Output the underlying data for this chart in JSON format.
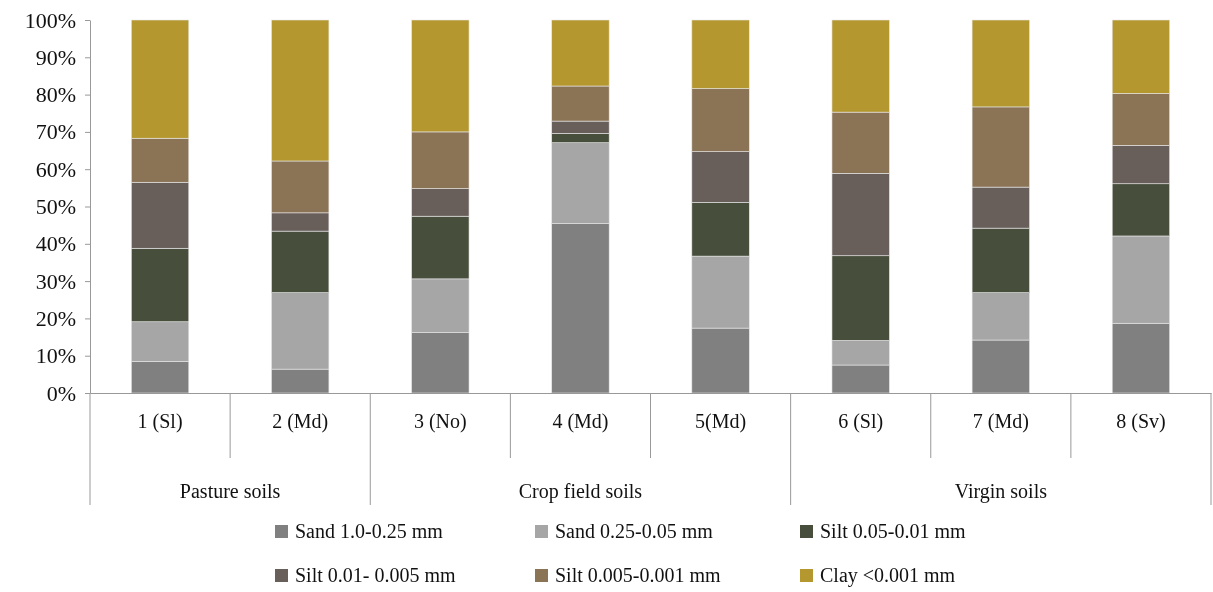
{
  "chart_data": {
    "type": "bar",
    "stacked": true,
    "categories": [
      "1 (Sl)",
      "2 (Md)",
      "3 (No)",
      "4 (Md)",
      "5(Md)",
      "6 (Sl)",
      "7 (Md)",
      "8 (Sv)"
    ],
    "series": [
      {
        "name": "Sand 1.0-0.25 mm",
        "color": "#808080",
        "values": [
          8.5,
          6.4,
          16.2,
          45.4,
          17.4,
          7.5,
          14.2,
          18.7
        ]
      },
      {
        "name": "Sand 0.25-0.05 mm",
        "color": "#a6a6a6",
        "values": [
          10.6,
          20.5,
          14.4,
          21.7,
          19.3,
          6.6,
          12.7,
          23.4
        ]
      },
      {
        "name": "Silt 0.05-0.01 mm",
        "color": "#474e3c",
        "values": [
          19.7,
          16.5,
          16.8,
          2.5,
          14.4,
          22.7,
          17.3,
          14.0
        ]
      },
      {
        "name": "Silt 0.01- 0.005 mm",
        "color": "#685e5a",
        "values": [
          17.7,
          4.9,
          7.4,
          3.3,
          13.6,
          22.1,
          11.0,
          10.3
        ]
      },
      {
        "name": "Silt 0.005-0.001 mm",
        "color": "#8b7355",
        "values": [
          11.8,
          13.9,
          15.2,
          9.4,
          16.9,
          16.4,
          21.5,
          13.9
        ]
      },
      {
        "name": "Clay <0.001 mm",
        "color": "#b5972f",
        "values": [
          31.7,
          37.8,
          30.0,
          17.7,
          18.4,
          24.7,
          23.3,
          19.7
        ]
      }
    ],
    "ylim": [
      0,
      100
    ],
    "yticks": [
      {
        "value": 0,
        "label": "0%"
      },
      {
        "value": 10,
        "label": "10%"
      },
      {
        "value": 20,
        "label": "20%"
      },
      {
        "value": 30,
        "label": "30%"
      },
      {
        "value": 40,
        "label": "40%"
      },
      {
        "value": 50,
        "label": "50%"
      },
      {
        "value": 60,
        "label": "60%"
      },
      {
        "value": 70,
        "label": "70%"
      },
      {
        "value": 80,
        "label": "80%"
      },
      {
        "value": 90,
        "label": "90%"
      },
      {
        "value": 100,
        "label": "100%"
      }
    ],
    "annotations": [
      "Pasture soils",
      "Crop field soils",
      "Virgin soils"
    ],
    "legend": "bottom",
    "grid": false
  }
}
